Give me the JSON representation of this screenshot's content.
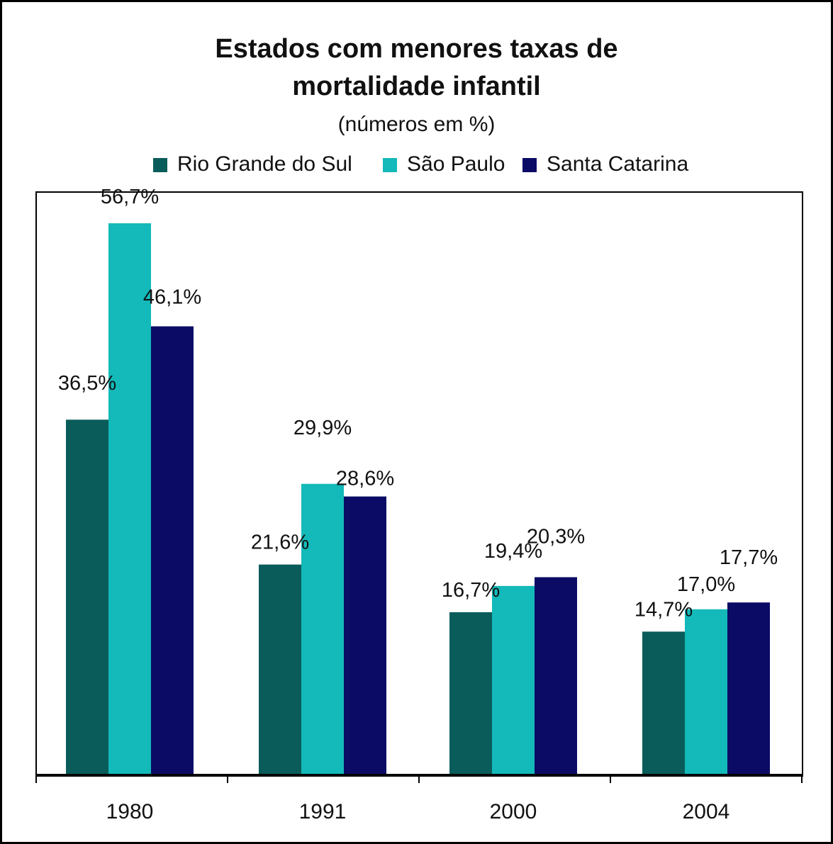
{
  "chart_data": {
    "type": "bar",
    "title_lines": [
      "Estados com menores taxas de",
      "mortalidade infantil"
    ],
    "subtitle": "(números em %)",
    "categories": [
      "1980",
      "1991",
      "2000",
      "2004"
    ],
    "series": [
      {
        "name": "Rio Grande do Sul",
        "color": "#0a5c5a",
        "values": [
          36.5,
          21.6,
          16.7,
          14.7
        ],
        "labels": [
          "36,5%",
          "21,6%",
          "16,7%",
          "14,7%"
        ]
      },
      {
        "name": "São Paulo",
        "color": "#14b9b9",
        "values": [
          56.7,
          29.9,
          19.4,
          17.0
        ],
        "labels": [
          "56,7%",
          "29,9%",
          "19,4%",
          "17,0%"
        ]
      },
      {
        "name": "Santa Catarina",
        "color": "#0b0b66",
        "values": [
          46.1,
          28.6,
          20.3,
          17.7
        ],
        "labels": [
          "46,1%",
          "28,6%",
          "20,3%",
          "17,7%"
        ]
      }
    ],
    "ylim": [
      0,
      60
    ],
    "grid": false,
    "legend_position": "top"
  }
}
